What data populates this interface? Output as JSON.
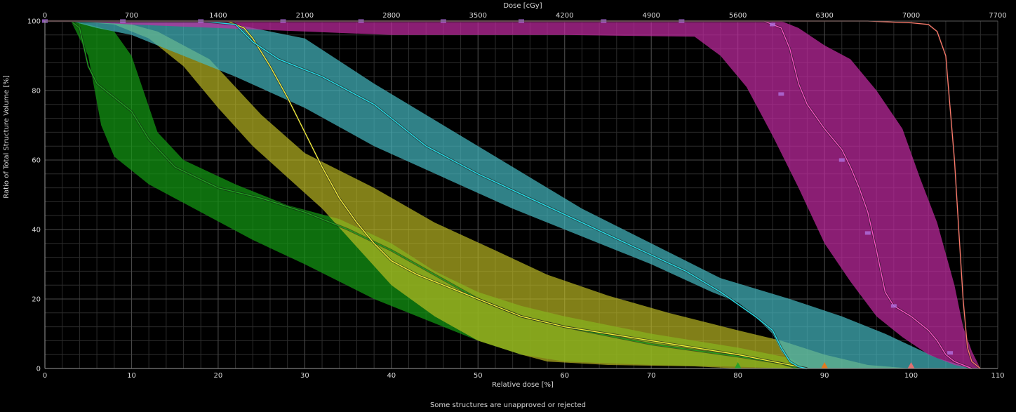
{
  "chart_data": {
    "type": "area",
    "top_axis_label": "Dose [cGy]",
    "bottom_axis_label": "Relative dose [%]",
    "y_axis_label": "Ratio of Total Structure Volume [%]",
    "x_range": [
      0,
      110
    ],
    "y_range": [
      0,
      100
    ],
    "x_ticks": [
      "0",
      "10",
      "20",
      "30",
      "40",
      "50",
      "60",
      "70",
      "80",
      "90",
      "100",
      "110"
    ],
    "y_ticks": [
      "0",
      "20",
      "40",
      "60",
      "80",
      "100"
    ],
    "top_ticks": [
      "0",
      "700",
      "1400",
      "2100",
      "2800",
      "3500",
      "4200",
      "4900",
      "5600",
      "6300",
      "7000",
      "7700"
    ],
    "grid": true,
    "series": [
      {
        "color": "#1fa51f",
        "fill": "#139813",
        "opacity": 0.72,
        "upper": [
          [
            0,
            100
          ],
          [
            3,
            100
          ],
          [
            5,
            99
          ],
          [
            8,
            97
          ],
          [
            10,
            90
          ],
          [
            13,
            68
          ],
          [
            16,
            60
          ],
          [
            22,
            53
          ],
          [
            28,
            47
          ],
          [
            34,
            43
          ],
          [
            40,
            36
          ],
          [
            45,
            28
          ],
          [
            50,
            22
          ],
          [
            55,
            18
          ],
          [
            60,
            15
          ],
          [
            70,
            10
          ],
          [
            80,
            6
          ],
          [
            86,
            3
          ],
          [
            88,
            0
          ]
        ],
        "lower": [
          [
            0,
            100
          ],
          [
            3,
            100
          ],
          [
            5,
            90
          ],
          [
            6.5,
            70
          ],
          [
            8,
            61
          ],
          [
            12,
            53
          ],
          [
            18,
            45
          ],
          [
            24,
            37
          ],
          [
            30,
            30
          ],
          [
            38,
            20
          ],
          [
            45,
            13
          ],
          [
            50,
            8
          ],
          [
            55,
            4
          ],
          [
            60,
            2
          ],
          [
            70,
            1
          ],
          [
            80,
            0.5
          ],
          [
            86,
            0
          ]
        ],
        "median": [
          [
            0,
            100
          ],
          [
            3,
            100
          ],
          [
            4,
            98
          ],
          [
            5,
            87
          ],
          [
            6,
            82
          ],
          [
            8,
            78
          ],
          [
            10,
            74
          ],
          [
            12,
            66
          ],
          [
            15,
            58
          ],
          [
            20,
            52
          ],
          [
            25,
            49
          ],
          [
            30,
            45
          ],
          [
            35,
            40
          ],
          [
            40,
            34
          ],
          [
            45,
            27
          ],
          [
            50,
            20
          ],
          [
            55,
            15
          ],
          [
            60,
            12
          ],
          [
            70,
            7
          ],
          [
            80,
            3.5
          ],
          [
            85,
            1.5
          ],
          [
            87,
            0
          ]
        ]
      },
      {
        "color": "#f6f03a",
        "fill": "#c4c124",
        "opacity": 0.66,
        "upper": [
          [
            0,
            100
          ],
          [
            3,
            100
          ],
          [
            10,
            99
          ],
          [
            13,
            97
          ],
          [
            19,
            89
          ],
          [
            25,
            73
          ],
          [
            30,
            62
          ],
          [
            38,
            52
          ],
          [
            45,
            42
          ],
          [
            52,
            34
          ],
          [
            58,
            27
          ],
          [
            65,
            21
          ],
          [
            72,
            16
          ],
          [
            80,
            11
          ],
          [
            85,
            8
          ],
          [
            90,
            4
          ],
          [
            95,
            1
          ],
          [
            100,
            0
          ]
        ],
        "lower": [
          [
            0,
            100
          ],
          [
            3,
            100
          ],
          [
            8,
            99
          ],
          [
            12,
            95
          ],
          [
            16,
            87
          ],
          [
            20,
            75
          ],
          [
            24,
            64
          ],
          [
            28,
            55
          ],
          [
            32,
            46
          ],
          [
            36,
            35
          ],
          [
            40,
            24
          ],
          [
            45,
            15
          ],
          [
            50,
            8
          ],
          [
            55,
            4
          ],
          [
            58,
            2
          ],
          [
            65,
            1
          ],
          [
            75,
            0.6
          ],
          [
            80,
            0
          ]
        ],
        "median": [
          [
            0,
            100
          ],
          [
            3,
            100
          ],
          [
            18,
            100
          ],
          [
            20,
            100
          ],
          [
            21,
            100
          ],
          [
            22,
            99
          ],
          [
            23,
            98
          ],
          [
            24,
            95
          ],
          [
            26,
            87
          ],
          [
            28,
            78
          ],
          [
            30,
            68
          ],
          [
            32,
            58
          ],
          [
            34,
            49
          ],
          [
            36,
            42
          ],
          [
            38,
            36
          ],
          [
            40,
            31
          ],
          [
            43,
            27
          ],
          [
            46,
            24
          ],
          [
            50,
            20
          ],
          [
            55,
            15
          ],
          [
            60,
            12
          ],
          [
            65,
            10
          ],
          [
            70,
            8
          ],
          [
            75,
            6
          ],
          [
            80,
            4
          ],
          [
            84,
            2
          ],
          [
            86,
            1
          ],
          [
            88,
            0
          ]
        ]
      },
      {
        "color": "#26e2ec",
        "fill": "#45b8c0",
        "opacity": 0.7,
        "upper": [
          [
            0,
            100
          ],
          [
            3,
            100
          ],
          [
            20,
            100
          ],
          [
            30,
            95
          ],
          [
            38,
            82
          ],
          [
            46,
            70
          ],
          [
            54,
            58
          ],
          [
            62,
            46
          ],
          [
            70,
            36
          ],
          [
            78,
            26
          ],
          [
            86,
            20
          ],
          [
            92,
            15
          ],
          [
            97,
            10
          ],
          [
            103,
            3
          ],
          [
            107,
            0
          ]
        ],
        "lower": [
          [
            0,
            100
          ],
          [
            3,
            100
          ],
          [
            6,
            98
          ],
          [
            10,
            96
          ],
          [
            15,
            91
          ],
          [
            22,
            84
          ],
          [
            30,
            75
          ],
          [
            38,
            64
          ],
          [
            46,
            55
          ],
          [
            54,
            46
          ],
          [
            62,
            38
          ],
          [
            70,
            30
          ],
          [
            77,
            22
          ],
          [
            80,
            19
          ],
          [
            82,
            15
          ],
          [
            84,
            10
          ],
          [
            85,
            5
          ],
          [
            86,
            2
          ],
          [
            87,
            0
          ]
        ],
        "median": [
          [
            0,
            100
          ],
          [
            3,
            100
          ],
          [
            18,
            100
          ],
          [
            22,
            99
          ],
          [
            24,
            94
          ],
          [
            27,
            89
          ],
          [
            32,
            84
          ],
          [
            38,
            76
          ],
          [
            44,
            64
          ],
          [
            50,
            56
          ],
          [
            56,
            49
          ],
          [
            62,
            42
          ],
          [
            68,
            35
          ],
          [
            74,
            28
          ],
          [
            78,
            22
          ],
          [
            82,
            15
          ],
          [
            84,
            11
          ],
          [
            85,
            6
          ],
          [
            86,
            2
          ],
          [
            87,
            0.5
          ],
          [
            88,
            0
          ]
        ]
      },
      {
        "color": "#ff50c8",
        "fill": "#c42ba4",
        "opacity": 0.7,
        "upper": [
          [
            0,
            100
          ],
          [
            3,
            100
          ],
          [
            80,
            100
          ],
          [
            85,
            100
          ],
          [
            87,
            98
          ],
          [
            90,
            93
          ],
          [
            93,
            89
          ],
          [
            96,
            80
          ],
          [
            99,
            69
          ],
          [
            101,
            55
          ],
          [
            103,
            42
          ],
          [
            105,
            24
          ],
          [
            106,
            12
          ],
          [
            107,
            5
          ],
          [
            108,
            0
          ]
        ],
        "lower": [
          [
            0,
            100
          ],
          [
            3,
            100
          ],
          [
            10,
            99
          ],
          [
            20,
            98
          ],
          [
            40,
            96
          ],
          [
            60,
            96
          ],
          [
            75,
            95.5
          ],
          [
            78,
            90
          ],
          [
            81,
            81
          ],
          [
            84,
            67
          ],
          [
            87,
            52
          ],
          [
            90,
            36
          ],
          [
            93,
            25
          ],
          [
            96,
            15
          ],
          [
            99,
            9
          ],
          [
            102,
            4
          ],
          [
            105,
            1
          ],
          [
            107,
            0
          ]
        ],
        "median": [
          [
            0,
            100
          ],
          [
            3,
            100
          ],
          [
            70,
            100
          ],
          [
            83,
            100
          ],
          [
            85,
            98
          ],
          [
            86,
            92
          ],
          [
            87,
            82
          ],
          [
            88,
            76
          ],
          [
            90,
            69
          ],
          [
            92,
            63
          ],
          [
            93,
            58
          ],
          [
            94,
            52
          ],
          [
            95,
            45
          ],
          [
            96,
            34
          ],
          [
            97,
            22
          ],
          [
            98,
            18
          ],
          [
            100,
            15
          ],
          [
            102,
            11
          ],
          [
            103,
            8
          ],
          [
            104,
            4
          ],
          [
            105,
            2
          ],
          [
            106,
            1
          ],
          [
            107,
            0
          ]
        ]
      },
      {
        "color": "#ff7a6a",
        "fill": "none",
        "opacity": 1,
        "median": [
          [
            0,
            100
          ],
          [
            3,
            100
          ],
          [
            50,
            100
          ],
          [
            80,
            100
          ],
          [
            95,
            100
          ],
          [
            100,
            99.5
          ],
          [
            102,
            99
          ],
          [
            103,
            97
          ],
          [
            104,
            90
          ],
          [
            105,
            60
          ],
          [
            105.5,
            40
          ],
          [
            106,
            20
          ],
          [
            106.5,
            6
          ],
          [
            107,
            2
          ],
          [
            108,
            0
          ]
        ]
      }
    ],
    "markers": [
      {
        "x": 80,
        "color": "#2aa02a"
      },
      {
        "x": 90,
        "color": "#e07a20"
      },
      {
        "x": 100,
        "color": "#e07070"
      }
    ],
    "series_markers": [
      {
        "series": 3,
        "points": [
          [
            84,
            99
          ],
          [
            85,
            79
          ],
          [
            92,
            60
          ],
          [
            95,
            39
          ],
          [
            98,
            18
          ],
          [
            104.5,
            4.5
          ]
        ]
      },
      {
        "series": 3,
        "points": [
          [
            0,
            100
          ],
          [
            9,
            100
          ],
          [
            18,
            100
          ],
          [
            27.5,
            100
          ],
          [
            36.5,
            100
          ],
          [
            46,
            100
          ],
          [
            55,
            100
          ],
          [
            64.5,
            100
          ],
          [
            73.5,
            100
          ]
        ]
      }
    ]
  },
  "status": {
    "message": "Some structures are unapproved or rejected"
  }
}
